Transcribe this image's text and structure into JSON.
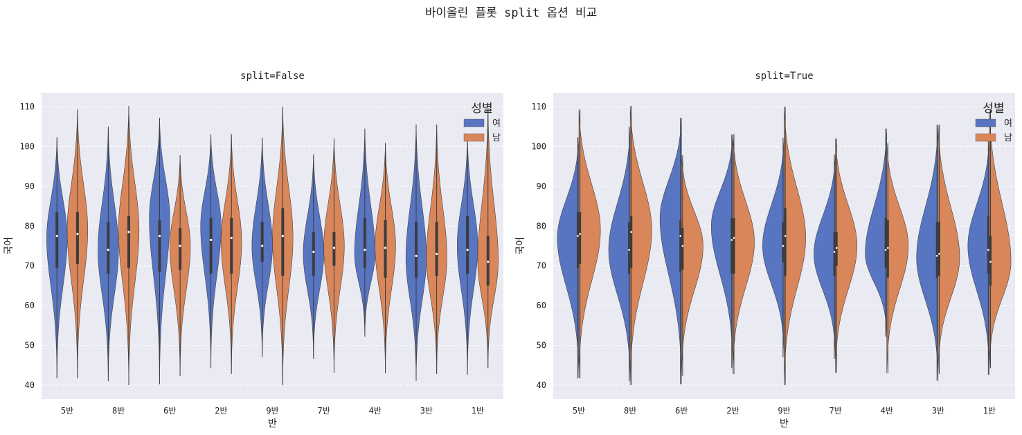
{
  "figure": {
    "suptitle": "바이올린 플롯 split 옵션 비교"
  },
  "colors": {
    "female": "#5875c1",
    "male": "#d9865a",
    "plot_bg": "#eaeaf2",
    "grid": "#ffffff",
    "inner": "#3c3c3c"
  },
  "legend": {
    "title": "성별",
    "entries": [
      "여",
      "남"
    ],
    "placement": "top-right"
  },
  "chart_data": [
    {
      "type": "violin",
      "title": "split=False",
      "xlabel": "반",
      "ylabel": "국어",
      "ylim": [
        36.5,
        113.5
      ],
      "yticks": [
        40,
        50,
        60,
        70,
        80,
        90,
        100,
        110
      ],
      "grid": true,
      "split": false,
      "categories": [
        "5반",
        "8반",
        "6반",
        "2반",
        "9반",
        "7반",
        "4반",
        "3반",
        "1반"
      ],
      "series": [
        {
          "name": "여",
          "min": [
            41.7,
            41,
            40.2,
            44.3,
            47,
            46.6,
            52.2,
            41.1,
            42.6
          ],
          "max": [
            102.3,
            105,
            107.2,
            103,
            102.2,
            98,
            104.5,
            105.5,
            102.3
          ],
          "q1": [
            69.5,
            68,
            68.5,
            68,
            71,
            67.5,
            69.5,
            67,
            68
          ],
          "median": [
            77.5,
            74,
            77.5,
            76.5,
            75,
            73.5,
            74,
            72.5,
            74
          ],
          "q3": [
            83.5,
            81,
            81.5,
            82,
            81,
            78.5,
            82,
            81,
            82.5
          ],
          "mode": [
            77,
            74,
            82,
            80,
            75,
            73,
            73,
            72,
            75
          ]
        },
        {
          "name": "남",
          "min": [
            41.7,
            40,
            42.3,
            42.8,
            40,
            43.1,
            43,
            42.8,
            44.3
          ],
          "max": [
            109.3,
            110.2,
            97.8,
            103.1,
            110,
            102,
            100.9,
            105.5,
            109.4
          ],
          "q1": [
            70.5,
            69.5,
            69,
            68,
            67.5,
            70,
            67,
            67.5,
            65
          ],
          "median": [
            78,
            78.5,
            75,
            77,
            77.5,
            74.5,
            74.5,
            73,
            71
          ],
          "q3": [
            83.5,
            82.5,
            79.5,
            82,
            84.5,
            78.5,
            81.5,
            81,
            77.5
          ],
          "mode": [
            79,
            79,
            75,
            76,
            77,
            75,
            75,
            72,
            71
          ]
        }
      ]
    },
    {
      "type": "violin",
      "title": "split=True",
      "xlabel": "반",
      "ylabel": "국어",
      "ylim": [
        36.5,
        113.5
      ],
      "yticks": [
        40,
        50,
        60,
        70,
        80,
        90,
        100,
        110
      ],
      "grid": true,
      "split": true,
      "categories": [
        "5반",
        "8반",
        "6반",
        "2반",
        "9반",
        "7반",
        "4반",
        "3반",
        "1반"
      ],
      "series": [
        {
          "name": "여",
          "min": [
            41.7,
            41,
            40.2,
            44.3,
            47,
            46.6,
            52.2,
            41.1,
            42.6
          ],
          "max": [
            102.3,
            105,
            107.2,
            103,
            102.2,
            98,
            104.5,
            105.5,
            102.3
          ],
          "q1": [
            69.5,
            68,
            68.5,
            68,
            71,
            67.5,
            69.5,
            67,
            68
          ],
          "median": [
            77.5,
            74,
            77.5,
            76.5,
            75,
            73.5,
            74,
            72.5,
            74
          ],
          "q3": [
            83.5,
            81,
            81.5,
            82,
            81,
            78.5,
            82,
            81,
            82.5
          ],
          "mode": [
            77,
            74,
            82,
            80,
            75,
            73,
            73,
            72,
            75
          ]
        },
        {
          "name": "남",
          "min": [
            41.7,
            40,
            42.3,
            42.8,
            40,
            43.1,
            43,
            42.8,
            44.3
          ],
          "max": [
            109.3,
            110.2,
            97.8,
            103.1,
            110,
            102,
            100.9,
            105.5,
            109.4
          ],
          "q1": [
            70.5,
            69.5,
            69,
            68,
            67.5,
            70,
            67,
            67.5,
            65
          ],
          "median": [
            78,
            78.5,
            75,
            77,
            77.5,
            74.5,
            74.5,
            73,
            71
          ],
          "q3": [
            83.5,
            82.5,
            79.5,
            82,
            84.5,
            78.5,
            81.5,
            81,
            77.5
          ],
          "mode": [
            79,
            79,
            75,
            76,
            77,
            75,
            75,
            72,
            71
          ]
        }
      ]
    }
  ]
}
